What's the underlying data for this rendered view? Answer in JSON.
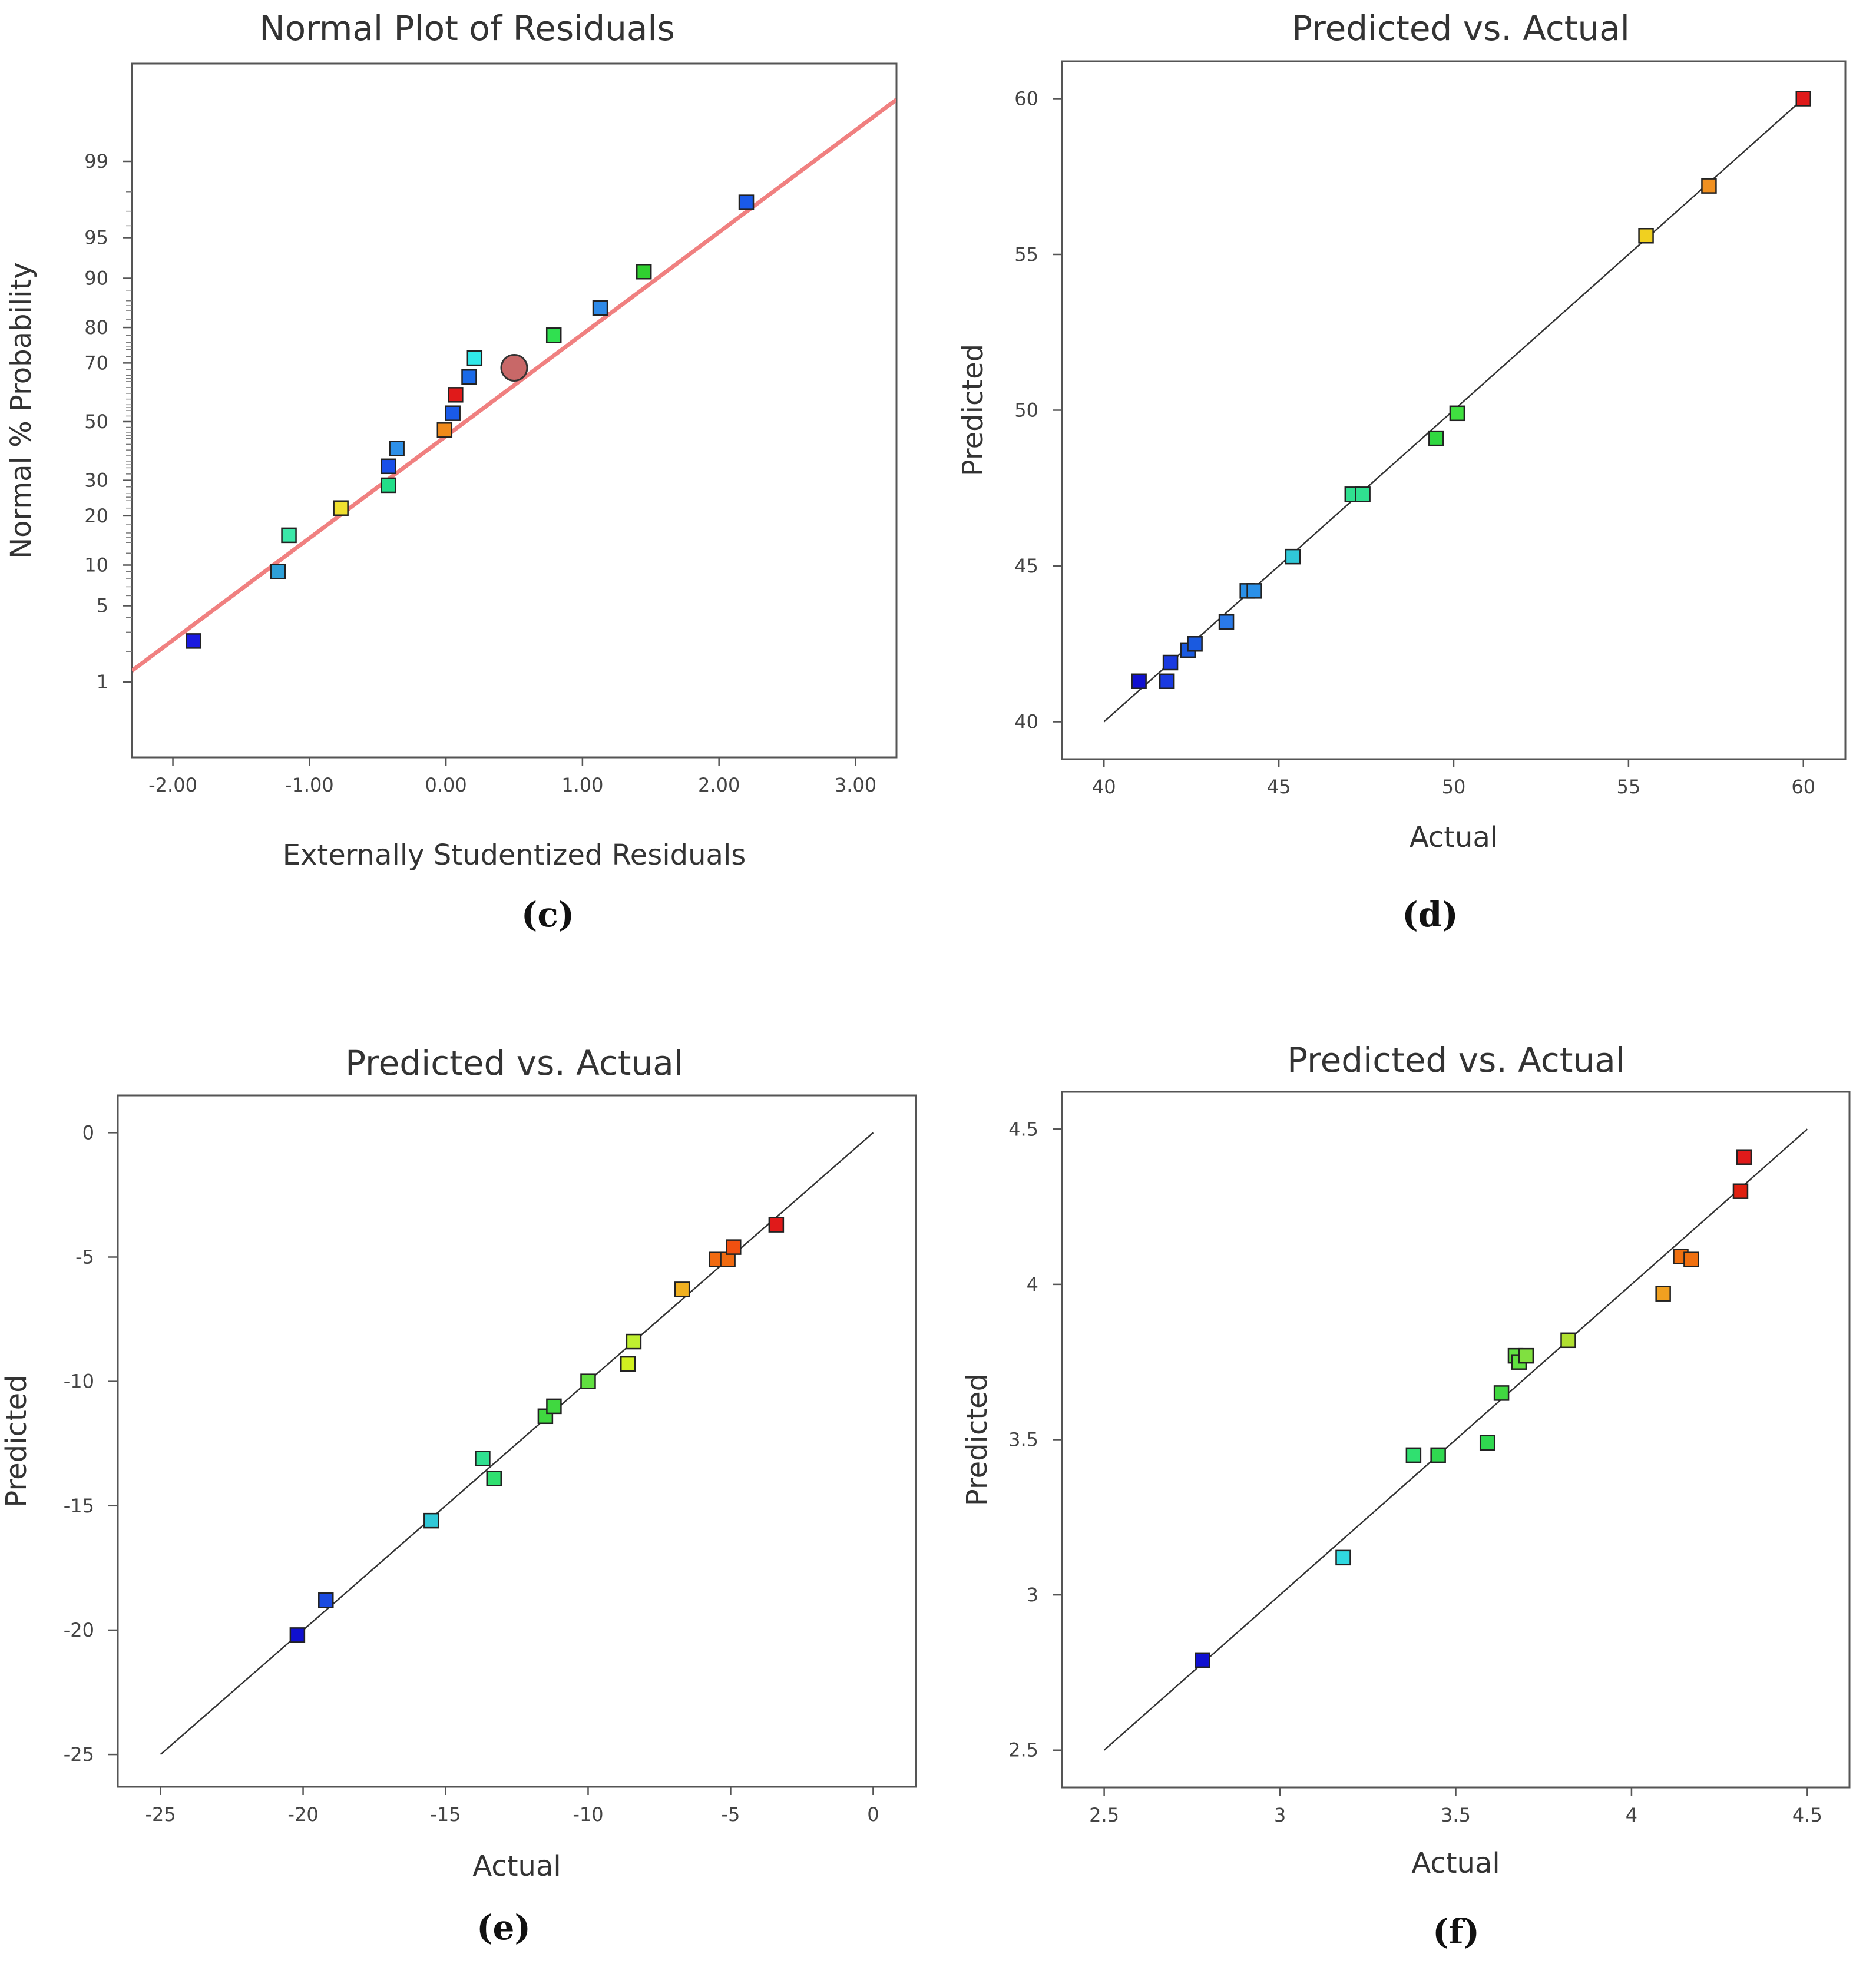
{
  "chart_data": [
    {
      "type": "scatter",
      "title": "Normal Plot of Residuals",
      "xlabel": "Externally Studentized Residuals",
      "ylabel": "Normal % Probability",
      "caption": "(c)",
      "xlim": [
        -2.3,
        3.3
      ],
      "ylim": [
        -3.0,
        3.2
      ],
      "x_ticks": [
        {
          "v": -2,
          "label": "-2.00"
        },
        {
          "v": -1,
          "label": "-1.00"
        },
        {
          "v": 0,
          "label": "0.00"
        },
        {
          "v": 1,
          "label": "1.00"
        },
        {
          "v": 2,
          "label": "2.00"
        },
        {
          "v": 3,
          "label": "3.00"
        }
      ],
      "y_ticks": [
        {
          "v": 1,
          "label": "1"
        },
        {
          "v": 5,
          "label": "5"
        },
        {
          "v": 10,
          "label": "10"
        },
        {
          "v": 20,
          "label": "20"
        },
        {
          "v": 30,
          "label": "30"
        },
        {
          "v": 50,
          "label": "50"
        },
        {
          "v": 70,
          "label": "70"
        },
        {
          "v": 80,
          "label": "80"
        },
        {
          "v": 90,
          "label": "90"
        },
        {
          "v": 95,
          "label": "95"
        },
        {
          "v": 99,
          "label": "99"
        }
      ],
      "reference_line": {
        "from": [
          -2.3,
          1.3
        ],
        "to": [
          3.3,
          99.8
        ],
        "color": "#f08080"
      },
      "points": [
        {
          "x": -1.85,
          "y": 2.5,
          "color": "#1a1ae0"
        },
        {
          "x": -1.23,
          "y": 9.0,
          "color": "#2ea0d8"
        },
        {
          "x": -1.15,
          "y": 15.5,
          "color": "#3ae8a8"
        },
        {
          "x": -0.77,
          "y": 22.0,
          "color": "#f0e030"
        },
        {
          "x": -0.42,
          "y": 28.5,
          "color": "#22dd88"
        },
        {
          "x": -0.42,
          "y": 34.5,
          "color": "#1a50e8"
        },
        {
          "x": -0.36,
          "y": 40.5,
          "color": "#2e90e8"
        },
        {
          "x": -0.01,
          "y": 47.0,
          "color": "#f08a1a"
        },
        {
          "x": 0.05,
          "y": 53.0,
          "color": "#1a5ae8"
        },
        {
          "x": 0.07,
          "y": 59.5,
          "color": "#e01a1a"
        },
        {
          "x": 0.17,
          "y": 65.5,
          "color": "#1a6ae8"
        },
        {
          "x": 0.21,
          "y": 71.5,
          "color": "#30e8e8"
        },
        {
          "x": 0.79,
          "y": 78.0,
          "color": "#30e050"
        },
        {
          "x": 1.13,
          "y": 84.5,
          "color": "#2e8ae8"
        },
        {
          "x": 1.45,
          "y": 91.0,
          "color": "#30d030"
        },
        {
          "x": 2.2,
          "y": 97.5,
          "color": "#1a5ae8"
        }
      ],
      "highlight_point": {
        "x": 0.5,
        "y": 68.5,
        "color": "#c86868"
      }
    },
    {
      "type": "scatter",
      "title": "Predicted vs. Actual",
      "xlabel": "Actual",
      "ylabel": "Predicted",
      "caption": "(d)",
      "xlim": [
        38.8,
        61.2
      ],
      "ylim": [
        38.8,
        61.2
      ],
      "x_ticks": [
        {
          "v": 40,
          "label": "40"
        },
        {
          "v": 45,
          "label": "45"
        },
        {
          "v": 50,
          "label": "50"
        },
        {
          "v": 55,
          "label": "55"
        },
        {
          "v": 60,
          "label": "60"
        }
      ],
      "y_ticks": [
        {
          "v": 40,
          "label": "40"
        },
        {
          "v": 45,
          "label": "45"
        },
        {
          "v": 50,
          "label": "50"
        },
        {
          "v": 55,
          "label": "55"
        },
        {
          "v": 60,
          "label": "60"
        }
      ],
      "reference_line": {
        "from": [
          40,
          40
        ],
        "to": [
          60,
          60
        ],
        "color": "#333333"
      },
      "points": [
        {
          "x": 41.0,
          "y": 41.3,
          "color": "#1010d0"
        },
        {
          "x": 41.8,
          "y": 41.3,
          "color": "#1a3ae0"
        },
        {
          "x": 41.9,
          "y": 41.9,
          "color": "#1a3ae0"
        },
        {
          "x": 42.4,
          "y": 42.3,
          "color": "#1a5ae0"
        },
        {
          "x": 42.6,
          "y": 42.5,
          "color": "#1a5ae0"
        },
        {
          "x": 43.5,
          "y": 43.2,
          "color": "#2a7ae8"
        },
        {
          "x": 44.1,
          "y": 44.2,
          "color": "#2a90e8"
        },
        {
          "x": 44.3,
          "y": 44.2,
          "color": "#2a90e8"
        },
        {
          "x": 45.4,
          "y": 45.3,
          "color": "#30c8d8"
        },
        {
          "x": 47.1,
          "y": 47.3,
          "color": "#30e090"
        },
        {
          "x": 47.4,
          "y": 47.3,
          "color": "#30e090"
        },
        {
          "x": 49.5,
          "y": 49.1,
          "color": "#30d840"
        },
        {
          "x": 50.1,
          "y": 49.9,
          "color": "#40e040"
        },
        {
          "x": 55.5,
          "y": 55.6,
          "color": "#f0d020"
        },
        {
          "x": 57.3,
          "y": 57.2,
          "color": "#f09020"
        },
        {
          "x": 60.0,
          "y": 60.0,
          "color": "#e01a1a"
        }
      ]
    },
    {
      "type": "scatter",
      "title": "Predicted vs. Actual",
      "xlabel": "Actual",
      "ylabel": "Predicted",
      "caption": "(e)",
      "xlim": [
        -26.5,
        1.5
      ],
      "ylim": [
        -26.3,
        1.5
      ],
      "x_ticks": [
        {
          "v": -25,
          "label": "-25"
        },
        {
          "v": -20,
          "label": "-20"
        },
        {
          "v": -15,
          "label": "-15"
        },
        {
          "v": -10,
          "label": "-10"
        },
        {
          "v": -5,
          "label": "-5"
        },
        {
          "v": 0,
          "label": "0"
        }
      ],
      "y_ticks": [
        {
          "v": -25,
          "label": "-25"
        },
        {
          "v": -20,
          "label": "-20"
        },
        {
          "v": -15,
          "label": "-15"
        },
        {
          "v": -10,
          "label": "-10"
        },
        {
          "v": -5,
          "label": "-5"
        },
        {
          "v": 0,
          "label": "0"
        }
      ],
      "reference_line": {
        "from": [
          -25,
          -25
        ],
        "to": [
          0,
          0
        ],
        "color": "#333333"
      },
      "points": [
        {
          "x": -20.2,
          "y": -20.2,
          "color": "#1010d0"
        },
        {
          "x": -19.2,
          "y": -18.8,
          "color": "#1a4ae0"
        },
        {
          "x": -15.5,
          "y": -15.6,
          "color": "#30c8d8"
        },
        {
          "x": -13.7,
          "y": -13.1,
          "color": "#30e090"
        },
        {
          "x": -13.3,
          "y": -13.9,
          "color": "#30e070"
        },
        {
          "x": -11.5,
          "y": -11.4,
          "color": "#40d840"
        },
        {
          "x": -11.2,
          "y": -11.0,
          "color": "#40d840"
        },
        {
          "x": -10.0,
          "y": -10.0,
          "color": "#60e040"
        },
        {
          "x": -8.6,
          "y": -9.3,
          "color": "#d0f020"
        },
        {
          "x": -8.4,
          "y": -8.4,
          "color": "#c0f030"
        },
        {
          "x": -6.7,
          "y": -6.3,
          "color": "#f0b020"
        },
        {
          "x": -5.5,
          "y": -5.1,
          "color": "#f06a10"
        },
        {
          "x": -5.1,
          "y": -5.1,
          "color": "#f06a10"
        },
        {
          "x": -4.9,
          "y": -4.6,
          "color": "#f05010"
        },
        {
          "x": -3.4,
          "y": -3.7,
          "color": "#e01a1a"
        }
      ]
    },
    {
      "type": "scatter",
      "title": "Predicted vs. Actual",
      "xlabel": "Actual",
      "ylabel": "Predicted",
      "caption": "(f)",
      "xlim": [
        2.38,
        4.62
      ],
      "ylim": [
        2.38,
        4.62
      ],
      "x_ticks": [
        {
          "v": 2.5,
          "label": "2.5"
        },
        {
          "v": 3,
          "label": "3"
        },
        {
          "v": 3.5,
          "label": "3.5"
        },
        {
          "v": 4,
          "label": "4"
        },
        {
          "v": 4.5,
          "label": "4.5"
        }
      ],
      "y_ticks": [
        {
          "v": 2.5,
          "label": "2.5"
        },
        {
          "v": 3,
          "label": "3"
        },
        {
          "v": 3.5,
          "label": "3.5"
        },
        {
          "v": 4,
          "label": "4"
        },
        {
          "v": 4.5,
          "label": "4.5"
        }
      ],
      "reference_line": {
        "from": [
          2.5,
          2.5
        ],
        "to": [
          4.5,
          4.5
        ],
        "color": "#333333"
      },
      "points": [
        {
          "x": 2.78,
          "y": 2.79,
          "color": "#1010d0"
        },
        {
          "x": 3.18,
          "y": 3.12,
          "color": "#30d8e0"
        },
        {
          "x": 3.38,
          "y": 3.45,
          "color": "#30e070"
        },
        {
          "x": 3.45,
          "y": 3.45,
          "color": "#30d850"
        },
        {
          "x": 3.59,
          "y": 3.49,
          "color": "#30d850"
        },
        {
          "x": 3.63,
          "y": 3.65,
          "color": "#40d840"
        },
        {
          "x": 3.67,
          "y": 3.77,
          "color": "#60e040"
        },
        {
          "x": 3.68,
          "y": 3.75,
          "color": "#60e040"
        },
        {
          "x": 3.7,
          "y": 3.77,
          "color": "#80e040"
        },
        {
          "x": 3.82,
          "y": 3.82,
          "color": "#b0e030"
        },
        {
          "x": 4.09,
          "y": 3.97,
          "color": "#f0a020"
        },
        {
          "x": 4.14,
          "y": 4.09,
          "color": "#f07010"
        },
        {
          "x": 4.17,
          "y": 4.08,
          "color": "#f07010"
        },
        {
          "x": 4.31,
          "y": 4.3,
          "color": "#e02010"
        },
        {
          "x": 4.32,
          "y": 4.41,
          "color": "#e01a1a"
        }
      ]
    }
  ]
}
